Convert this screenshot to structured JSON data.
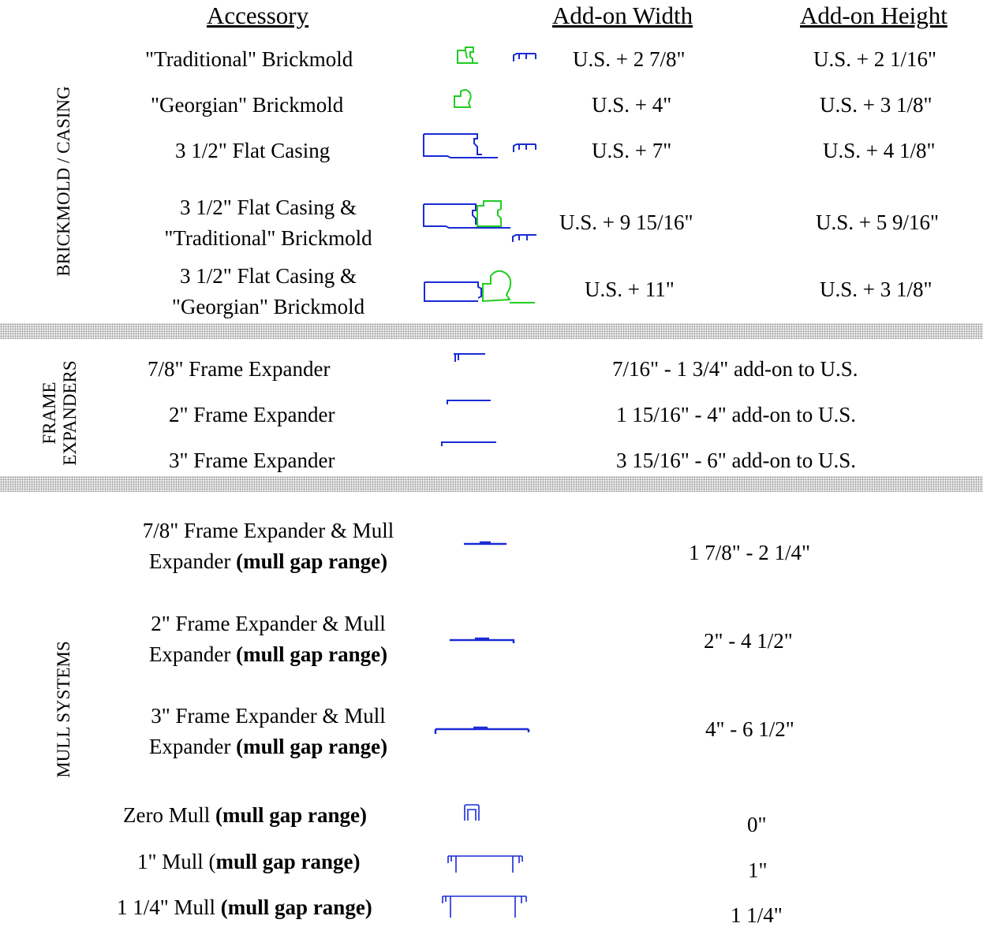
{
  "headers": {
    "accessory": "Accessory",
    "add_on_width": "Add-on Width",
    "add_on_height": "Add-on Height"
  },
  "sections": {
    "brickmold": "BRICKMOLD / CASING",
    "frame_expanders_line1": "FRAME",
    "frame_expanders_line2": "EXPANDERS",
    "mull_systems": "MULL SYSTEMS"
  },
  "brickmold_rows": [
    {
      "accessory": "\"Traditional\" Brickmold",
      "width": "U.S. + 2 7/8\"",
      "height": "U.S. + 2  1/16\""
    },
    {
      "accessory": "\"Georgian\" Brickmold",
      "width": "U.S. + 4\"",
      "height": "U.S. + 3  1/8\""
    },
    {
      "accessory": "3 1/2\" Flat Casing",
      "width": "U.S. + 7\"",
      "height": "U.S. + 4 1/8\""
    },
    {
      "accessory_line1": "3 1/2\" Flat Casing &",
      "accessory_line2": "\"Traditional\" Brickmold",
      "width": "U.S. + 9 15/16\"",
      "height": "U.S. + 5 9/16\""
    },
    {
      "accessory_line1": "3 1/2\" Flat Casing &",
      "accessory_line2": "\"Georgian\" Brickmold",
      "width": "U.S. + 11\"",
      "height": "U.S. + 3  1/8\""
    }
  ],
  "expander_rows": [
    {
      "accessory": "7/8\" Frame Expander",
      "range": "7/16\" - 1 3/4\" add-on to U.S."
    },
    {
      "accessory": "2\" Frame Expander",
      "range": "1 15/16\" - 4\" add-on to U.S."
    },
    {
      "accessory": "3\" Frame Expander",
      "range": "3 15/16\" - 6\" add-on to U.S."
    }
  ],
  "mull_rows": [
    {
      "line1": "7/8\" Frame Expander & Mull",
      "line2_prefix": "Expander ",
      "bold": "(mull gap range)",
      "range": "1 7/8\" - 2 1/4\""
    },
    {
      "line1": "2\" Frame Expander & Mull",
      "line2_prefix": "Expander ",
      "bold": "(mull gap range)",
      "range": "2\" - 4 1/2\""
    },
    {
      "line1": "3\" Frame Expander & Mull",
      "line2_prefix": "Expander ",
      "bold": "(mull gap range)",
      "range": "4\" - 6 1/2\""
    },
    {
      "prefix": "Zero Mull ",
      "bold": "(mull gap range)",
      "range": "0\""
    },
    {
      "prefix": "1\" Mull (",
      "bold": "mull gap range)",
      "range": "1\""
    },
    {
      "prefix": "1 1/4\" Mull ",
      "bold": "(mull gap range)",
      "range": "1 1/4\""
    }
  ],
  "colors": {
    "profile_green": "#22cc22",
    "profile_blue": "#1a2bd6",
    "separator": "#ececec"
  }
}
